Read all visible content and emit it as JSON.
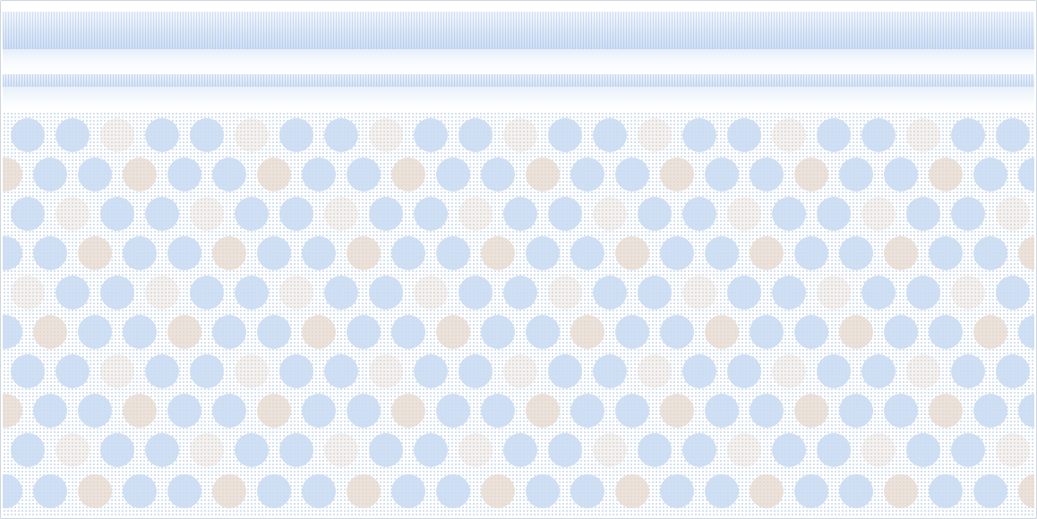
{
  "colors": {
    "background": "#ffffff",
    "border": "#cfd5dc",
    "band_blue": "#cfdef4",
    "dot_grid": "#c9d8ea",
    "circle_blue": "#cadcf3",
    "circle_tan": "#e6d8cc"
  }
}
